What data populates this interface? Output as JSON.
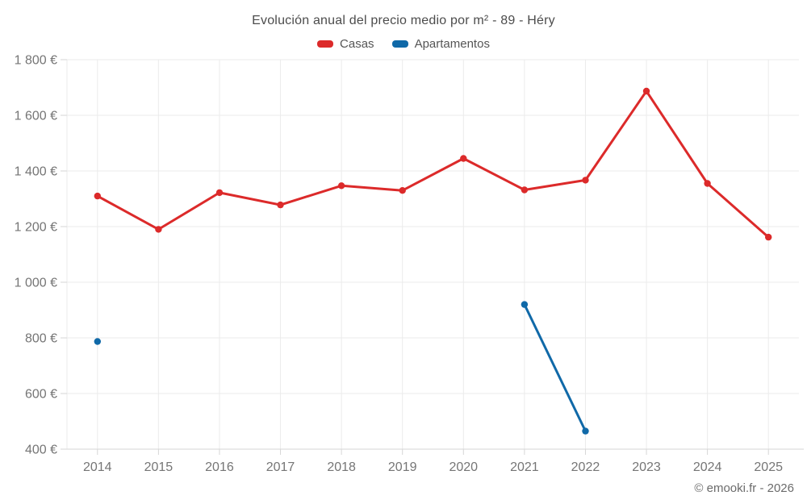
{
  "title": "Evolución anual del precio medio por m² - 89 - Héry",
  "footer": "© emooki.fr - 2026",
  "colors": {
    "casas": "#dc2a2a",
    "apartamentos": "#1069a8",
    "title_text": "#4c4c4c",
    "axis_label_text": "#757575",
    "gridline": "#ebebeb",
    "axis_line": "#d6d6d6"
  },
  "chart_data": {
    "type": "line",
    "title": "Evolución anual del precio medio por m² - 89 - Héry",
    "categories": [
      "2014",
      "2015",
      "2016",
      "2017",
      "2018",
      "2019",
      "2020",
      "2021",
      "2022",
      "2023",
      "2024",
      "2025"
    ],
    "series": [
      {
        "name": "Casas",
        "color": "#dc2a2a",
        "values": [
          1310,
          1190,
          1322,
          1278,
          1347,
          1330,
          1445,
          1332,
          1367,
          1687,
          1355,
          1162
        ]
      },
      {
        "name": "Apartamentos",
        "color": "#1069a8",
        "values": [
          787,
          null,
          null,
          null,
          null,
          null,
          null,
          920,
          465,
          null,
          null,
          null
        ]
      }
    ],
    "xlabel": "",
    "ylabel": "",
    "ylim": [
      400,
      1800
    ],
    "ytick_step": 200,
    "ytick_labels": [
      "400 €",
      "600 €",
      "800 €",
      "1 000 €",
      "1 200 €",
      "1 400 €",
      "1 600 €",
      "1 800 €"
    ],
    "grid": true,
    "legend_position": "top",
    "currency_suffix": "€"
  }
}
